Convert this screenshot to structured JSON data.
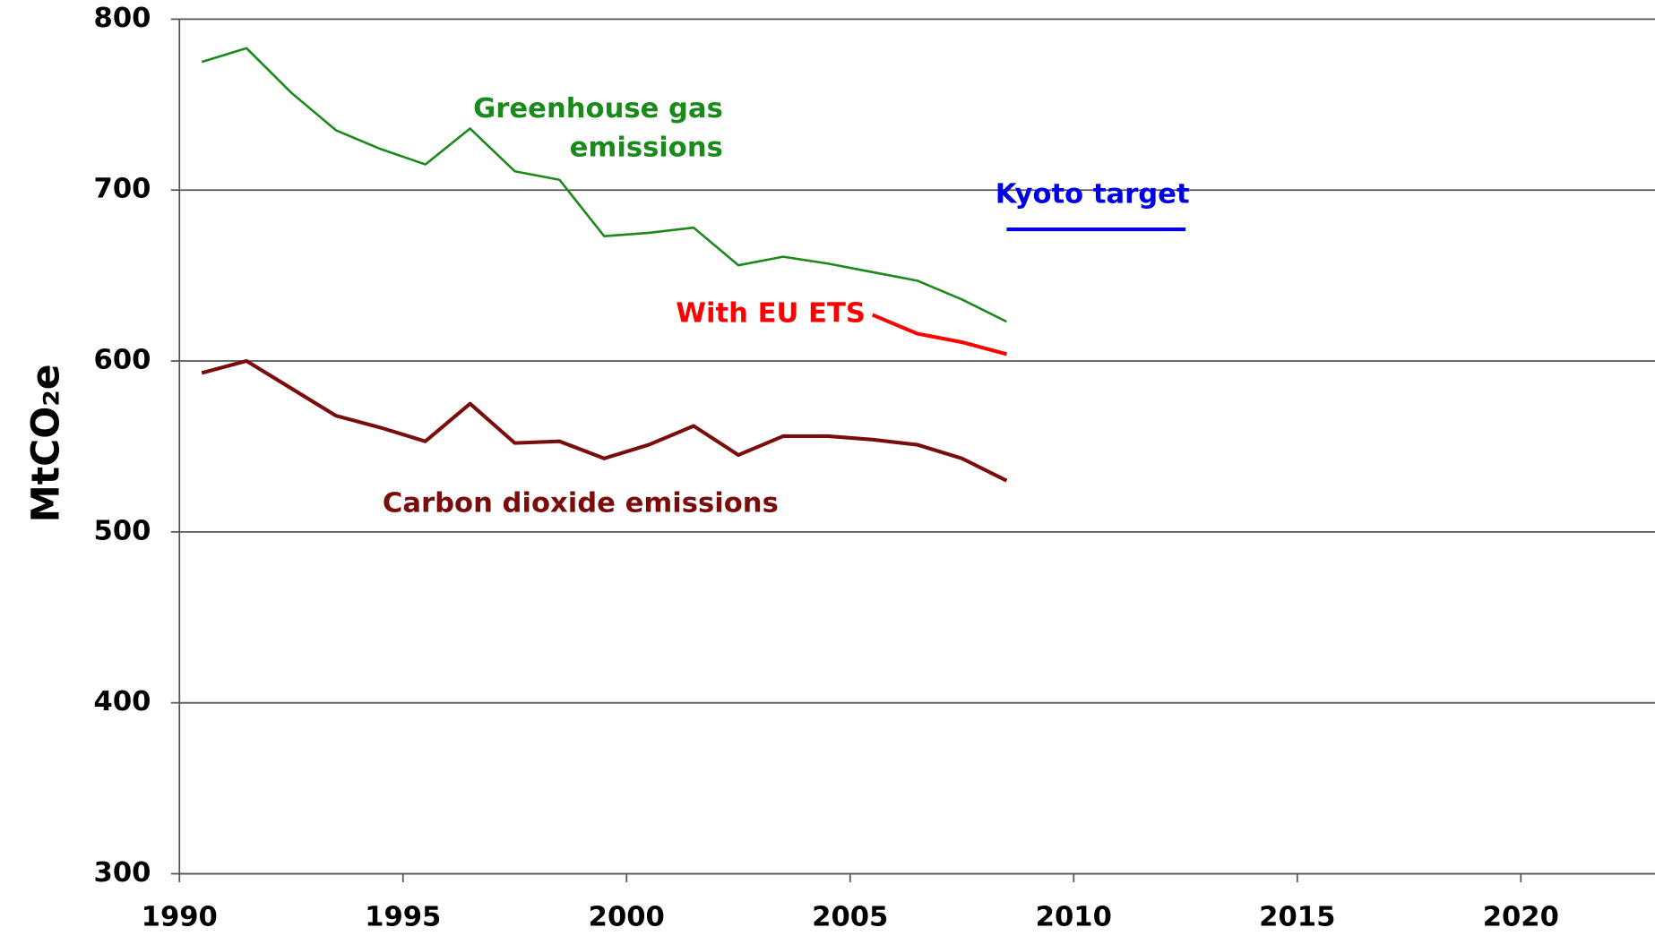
{
  "chart_data": {
    "type": "line",
    "ylabel": "MtCO₂e",
    "x": [
      1990.5,
      1991.5,
      1992.5,
      1993.5,
      1994.5,
      1995.5,
      1996.5,
      1997.5,
      1998.5,
      1999.5,
      2000.5,
      2001.5,
      2002.5,
      2003.5,
      2004.5,
      2005.5,
      2006.5,
      2007.5,
      2008.5,
      2009.5,
      2010.5,
      2011.5,
      2012.5
    ],
    "series": [
      {
        "name": "Greenhouse gas emissions",
        "color": "#1a8a1a",
        "values": [
          775,
          783,
          757,
          735,
          724,
          715,
          736,
          711,
          706,
          673,
          675,
          678,
          656,
          661,
          657,
          652,
          647,
          636,
          623,
          null,
          null,
          null,
          null
        ]
      },
      {
        "name": "Carbon dioxide emissions",
        "color": "#7b0c0c",
        "values": [
          593,
          600,
          584,
          568,
          561,
          553,
          575,
          552,
          553,
          543,
          551,
          562,
          545,
          556,
          556,
          554,
          551,
          543,
          530,
          null,
          null,
          null,
          null
        ]
      },
      {
        "name": "With EU ETS",
        "color": "#ff0000",
        "values": [
          null,
          null,
          null,
          null,
          null,
          null,
          null,
          null,
          null,
          null,
          null,
          null,
          null,
          null,
          null,
          627,
          616,
          611,
          604,
          null,
          null,
          null,
          null
        ]
      },
      {
        "name": "Kyoto target",
        "color": "#0000e0",
        "values": [
          null,
          null,
          null,
          null,
          null,
          null,
          null,
          null,
          null,
          null,
          null,
          null,
          null,
          null,
          null,
          null,
          null,
          null,
          677,
          677,
          677,
          677,
          677
        ]
      }
    ],
    "xlim": [
      1990,
      2023
    ],
    "xticks": [
      1990,
      1995,
      2000,
      2005,
      2010,
      2015,
      2020
    ],
    "ylim": [
      300,
      800
    ],
    "yticks": [
      300,
      400,
      500,
      600,
      700,
      800
    ],
    "grid": true
  }
}
